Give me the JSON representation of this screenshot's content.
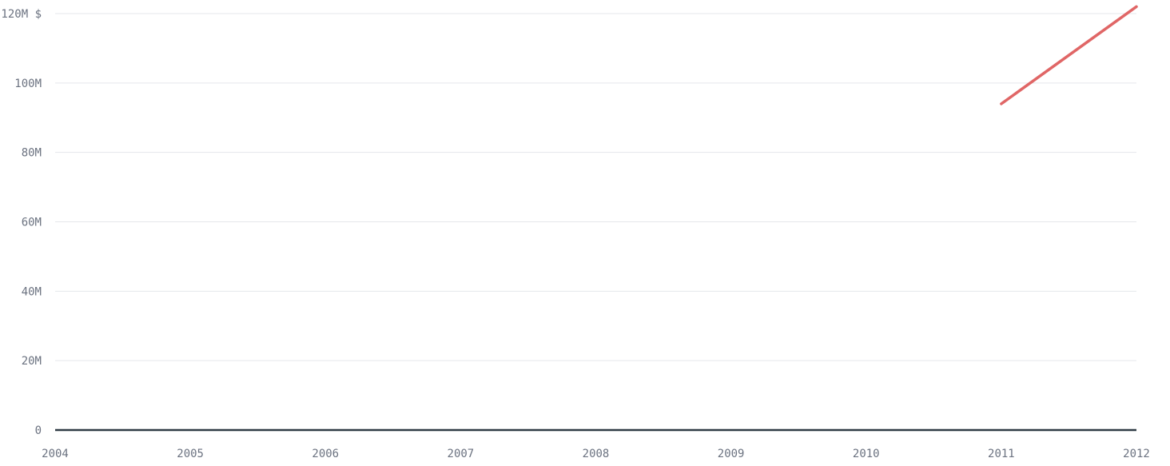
{
  "chart_data": {
    "type": "line",
    "title": "",
    "xlabel": "",
    "ylabel": "",
    "x_ticks": [
      "2004",
      "2005",
      "2006",
      "2007",
      "2008",
      "2009",
      "2010",
      "2011",
      "2012"
    ],
    "y_ticks": [
      {
        "value": 0,
        "label": "0"
      },
      {
        "value": 20000000,
        "label": "20M"
      },
      {
        "value": 40000000,
        "label": "40M"
      },
      {
        "value": 60000000,
        "label": "60M"
      },
      {
        "value": 80000000,
        "label": "80M"
      },
      {
        "value": 100000000,
        "label": "100M"
      },
      {
        "value": 120000000,
        "label": "120M $"
      }
    ],
    "xlim": [
      2004,
      2012
    ],
    "ylim": [
      0,
      120000000
    ],
    "grid": true,
    "series": [
      {
        "color": "#e06666",
        "points": [
          {
            "x": 2011,
            "y": 94000000
          },
          {
            "x": 2012,
            "y": 122000000
          }
        ]
      }
    ]
  }
}
